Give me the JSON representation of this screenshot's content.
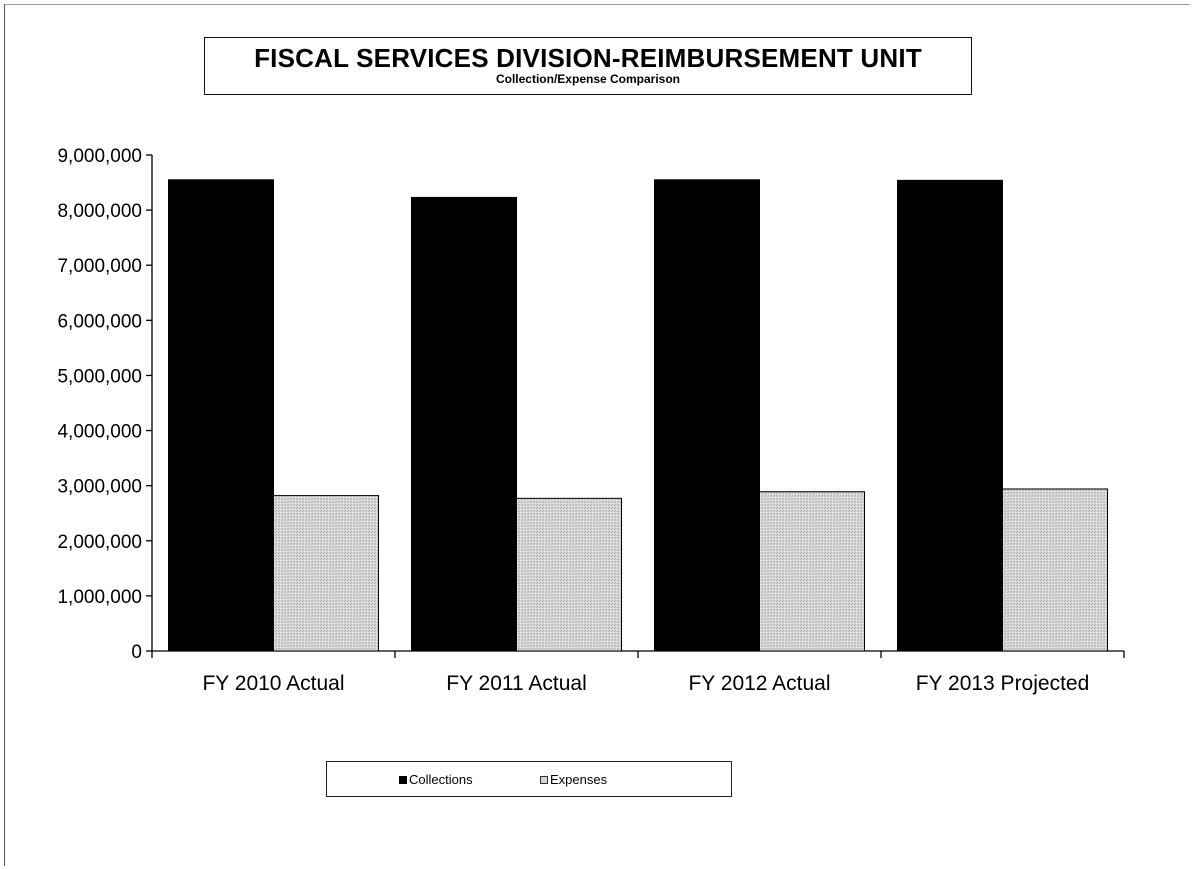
{
  "chart_data": {
    "type": "bar",
    "title": "FISCAL SERVICES DIVISION-REIMBURSEMENT UNIT",
    "subtitle": "Collection/Expense Comparison",
    "categories": [
      "FY 2010 Actual",
      "FY 2011 Actual",
      "FY 2012 Actual",
      "FY 2013 Projected"
    ],
    "series": [
      {
        "name": "Collections",
        "values": [
          8550000,
          8230000,
          8550000,
          8540000
        ],
        "color": "#000000"
      },
      {
        "name": "Expenses",
        "values": [
          2820000,
          2770000,
          2890000,
          2940000
        ],
        "color": "#d2d2d2"
      }
    ],
    "ylim": [
      0,
      9000000
    ],
    "yticks": [
      0,
      1000000,
      2000000,
      3000000,
      4000000,
      5000000,
      6000000,
      7000000,
      8000000,
      9000000
    ],
    "ytick_labels": [
      "0",
      "1,000,000",
      "2,000,000",
      "3,000,000",
      "4,000,000",
      "5,000,000",
      "6,000,000",
      "7,000,000",
      "8,000,000",
      "9,000,000"
    ],
    "grid": false,
    "legend_position": "bottom"
  }
}
